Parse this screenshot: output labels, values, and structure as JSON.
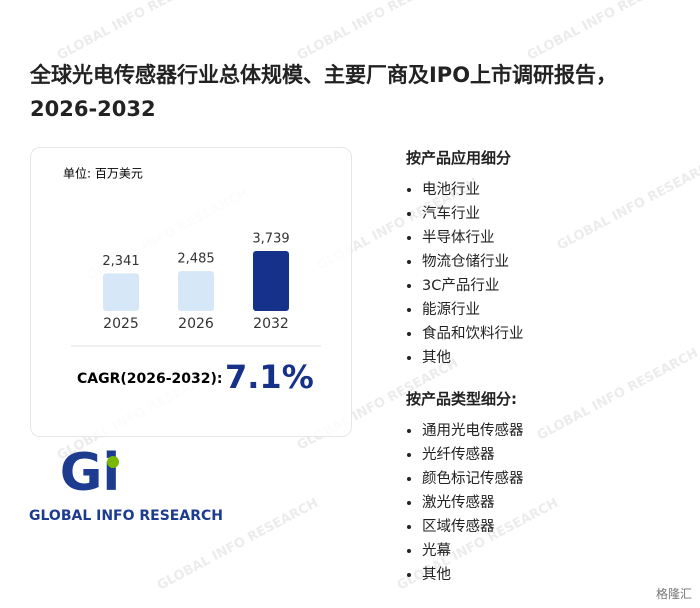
{
  "title": "全球光电传感器行业总体规模、主要厂商及IPO上市调研报告，2026-2032",
  "watermark": "GLOBAL INFO RESEARCH",
  "chart_data": {
    "type": "bar",
    "unit": "单位: 百万美元",
    "categories": [
      "2025",
      "2026",
      "2032"
    ],
    "values": [
      2341,
      2485,
      3739
    ],
    "value_labels": [
      "2,341",
      "2,485",
      "3,739"
    ],
    "colors": [
      "#d6e8f8",
      "#d6e8f8",
      "#15318a"
    ]
  },
  "cagr": {
    "label": "CAGR(2026-2032):",
    "value": "7.1%"
  },
  "segments": [
    {
      "heading": "按产品应用细分",
      "items": [
        "电池行业",
        "汽车行业",
        "半导体行业",
        "物流仓储行业",
        "3C产品行业",
        "能源行业",
        "食品和饮料行业",
        "其他"
      ]
    },
    {
      "heading": "按产品类型细分:",
      "items": [
        "通用光电传感器",
        "光纤传感器",
        "颜色标记传感器",
        "激光传感器",
        "区域传感器",
        "光幕",
        "其他"
      ]
    }
  ],
  "logo": {
    "mark": "Gi",
    "text": "GLOBAL INFO RESEARCH"
  },
  "source_logo": "格隆汇"
}
